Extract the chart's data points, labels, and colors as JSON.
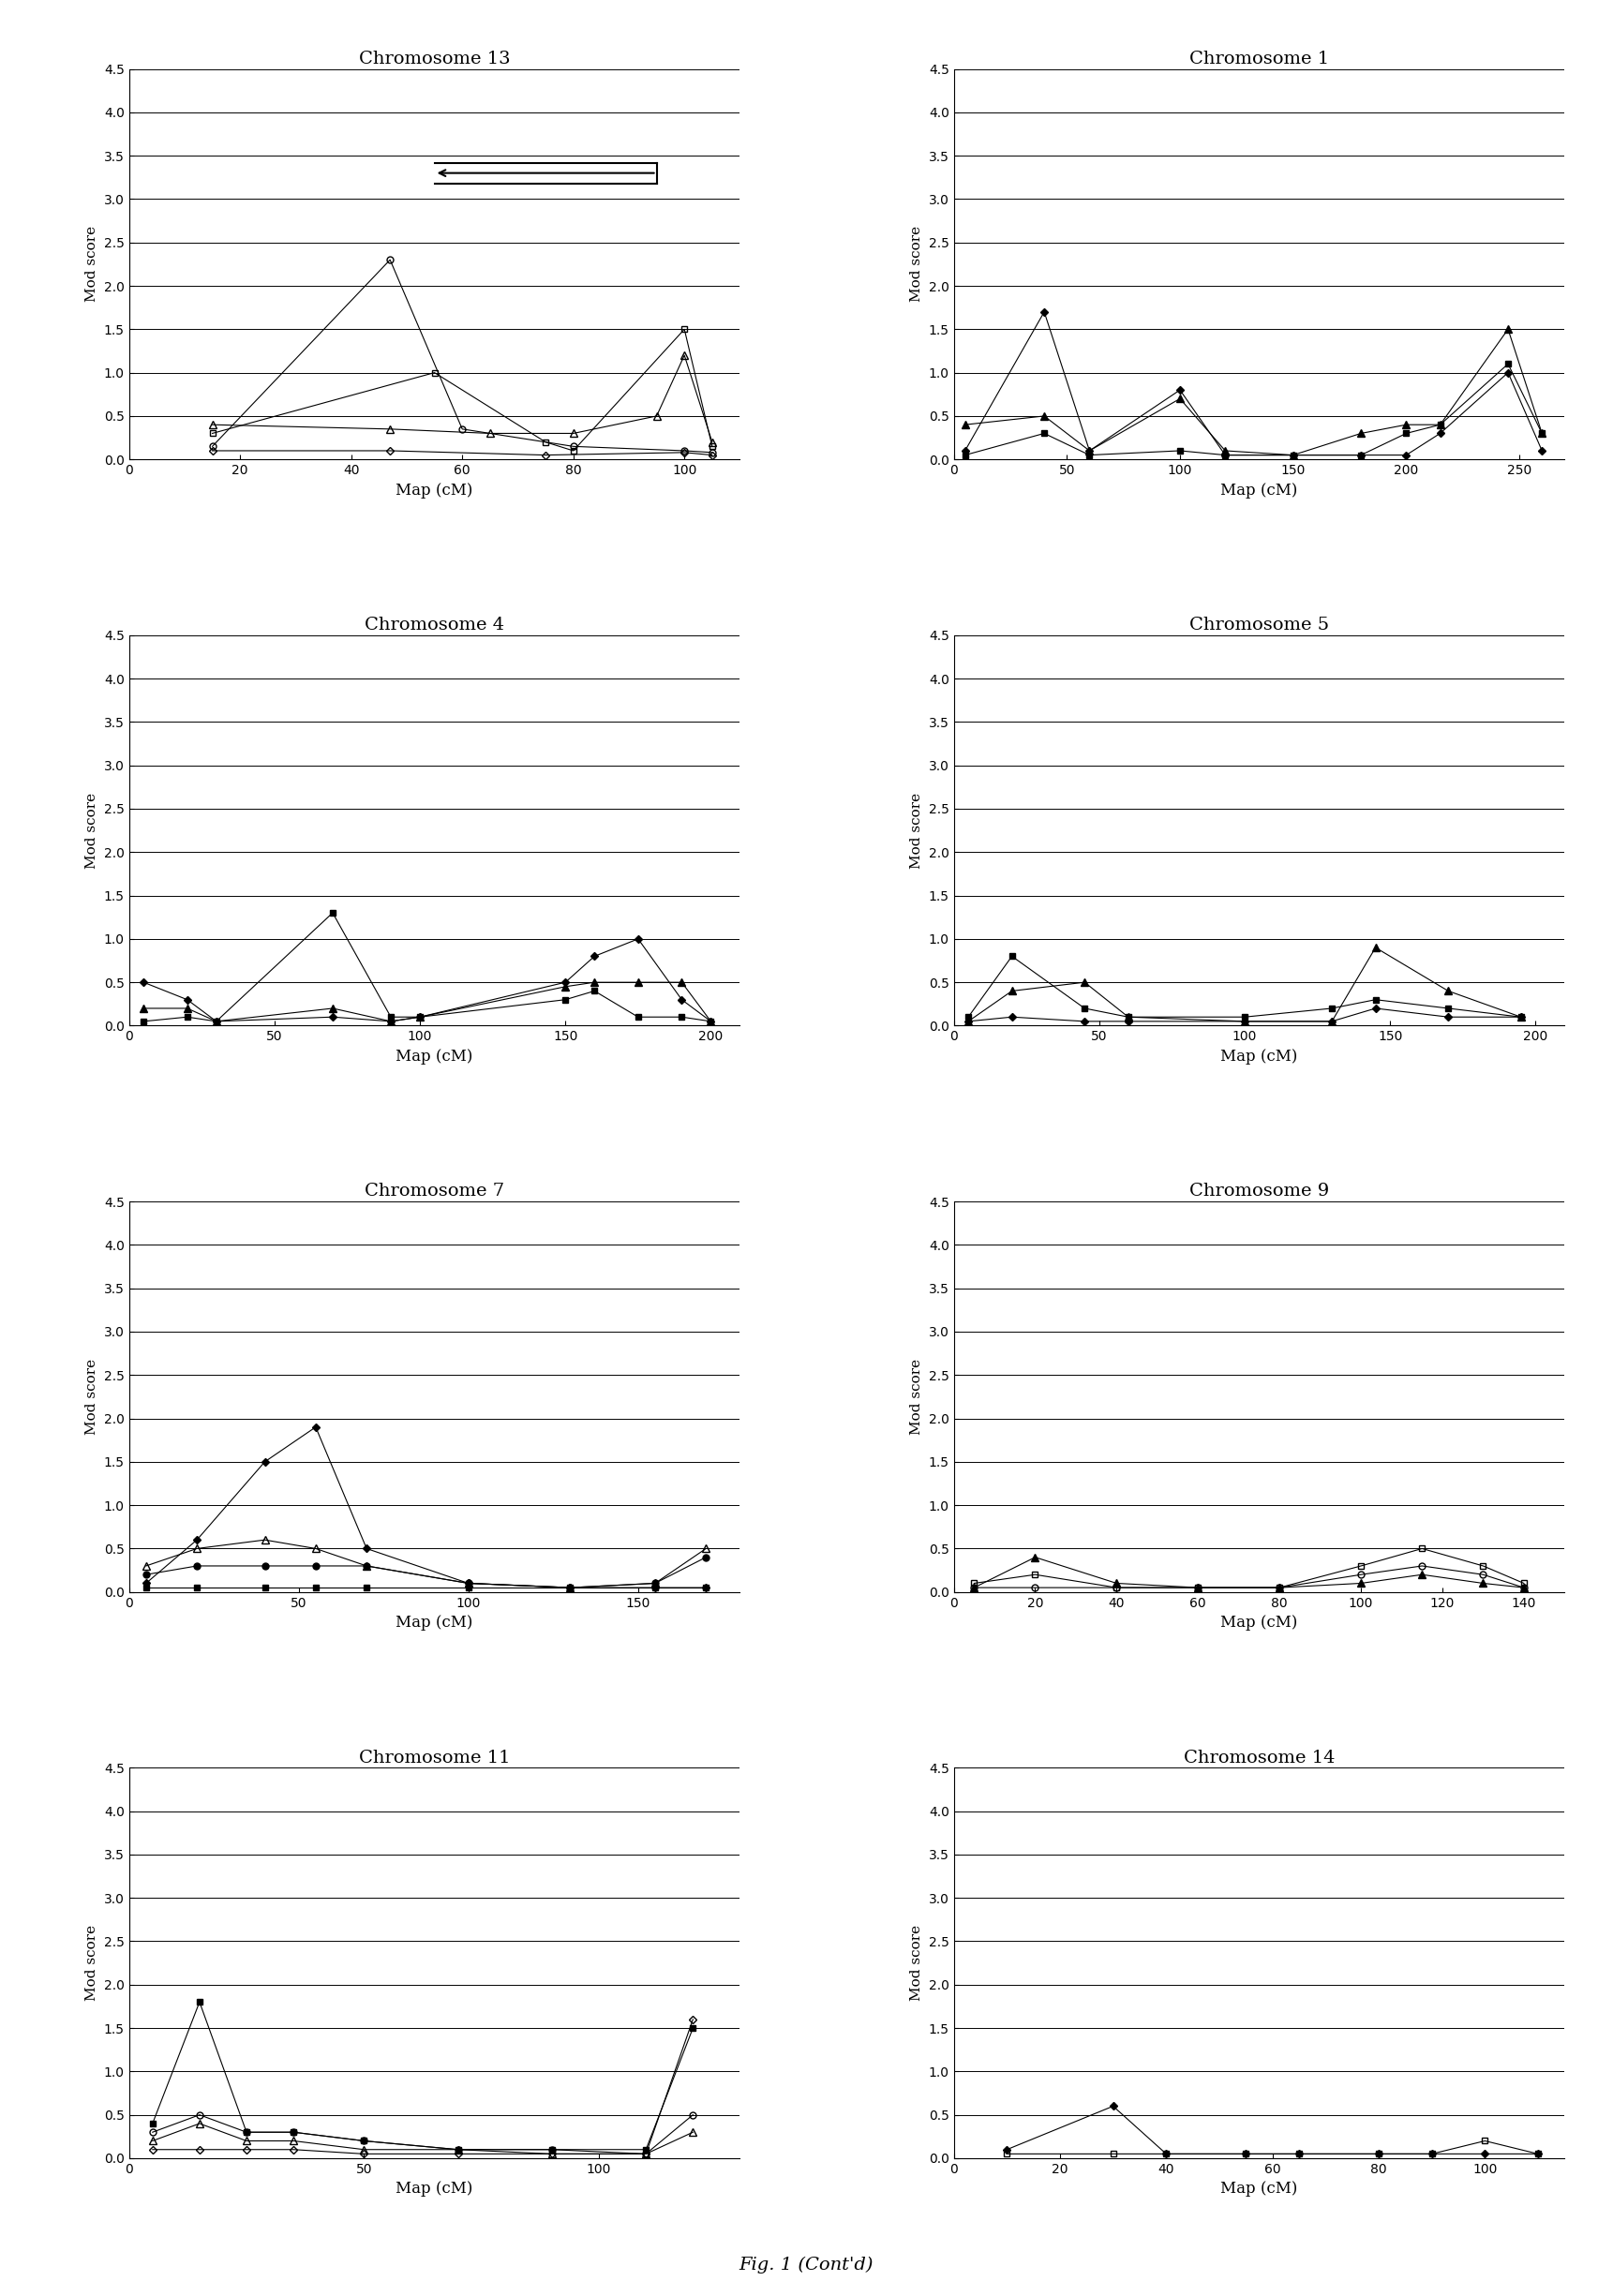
{
  "panels": [
    {
      "title": "Chromosome 13",
      "xlim": [
        0,
        110
      ],
      "xticks": [
        0,
        20,
        40,
        60,
        80,
        100
      ],
      "has_arrow": true,
      "arrow": {
        "x_start": 95,
        "x_end": 55,
        "y": 3.3
      },
      "series": [
        {
          "x": [
            15,
            47,
            60,
            80,
            100,
            105
          ],
          "y": [
            0.15,
            2.3,
            0.35,
            0.15,
            0.1,
            0.08
          ],
          "marker": "o",
          "filled": false,
          "ls": "-"
        },
        {
          "x": [
            15,
            55,
            75,
            80,
            100,
            105
          ],
          "y": [
            0.3,
            1.0,
            0.2,
            0.1,
            1.5,
            0.15
          ],
          "marker": "s",
          "filled": false,
          "ls": "-"
        },
        {
          "x": [
            15,
            47,
            65,
            80,
            95,
            100,
            105
          ],
          "y": [
            0.4,
            0.35,
            0.3,
            0.3,
            0.5,
            1.2,
            0.2
          ],
          "marker": "^",
          "filled": false,
          "ls": "-"
        },
        {
          "x": [
            15,
            47,
            75,
            100,
            105
          ],
          "y": [
            0.1,
            0.1,
            0.05,
            0.08,
            0.05
          ],
          "marker": "D",
          "filled": false,
          "ls": "-"
        }
      ]
    },
    {
      "title": "Chromosome 1",
      "xlim": [
        0,
        270
      ],
      "xticks": [
        0,
        50,
        100,
        150,
        200,
        250
      ],
      "has_arrow": false,
      "series": [
        {
          "x": [
            5,
            40,
            60,
            100,
            120,
            150,
            180,
            200,
            215,
            245,
            260
          ],
          "y": [
            0.4,
            0.5,
            0.1,
            0.7,
            0.1,
            0.05,
            0.3,
            0.4,
            0.4,
            1.5,
            0.3
          ],
          "marker": "^",
          "filled": true,
          "ls": "-"
        },
        {
          "x": [
            5,
            40,
            60,
            100,
            120,
            150,
            180,
            200,
            215,
            245,
            260
          ],
          "y": [
            0.1,
            1.7,
            0.1,
            0.8,
            0.05,
            0.05,
            0.05,
            0.05,
            0.3,
            1.0,
            0.1
          ],
          "marker": "D",
          "filled": true,
          "ls": "-"
        },
        {
          "x": [
            5,
            40,
            60,
            100,
            120,
            150,
            180,
            200,
            215,
            245,
            260
          ],
          "y": [
            0.05,
            0.3,
            0.05,
            0.1,
            0.05,
            0.05,
            0.05,
            0.3,
            0.4,
            1.1,
            0.3
          ],
          "marker": "s",
          "filled": true,
          "ls": "-"
        }
      ]
    },
    {
      "title": "Chromosome 4",
      "xlim": [
        0,
        210
      ],
      "xticks": [
        0,
        50,
        100,
        150,
        200
      ],
      "has_arrow": false,
      "series": [
        {
          "x": [
            5,
            20,
            30,
            70,
            90,
            100,
            150,
            160,
            175,
            190,
            200
          ],
          "y": [
            0.05,
            0.1,
            0.05,
            1.3,
            0.1,
            0.1,
            0.3,
            0.4,
            0.1,
            0.1,
            0.05
          ],
          "marker": "s",
          "filled": true,
          "ls": "-"
        },
        {
          "x": [
            5,
            20,
            30,
            70,
            90,
            100,
            150,
            160,
            175,
            190,
            200
          ],
          "y": [
            0.5,
            0.3,
            0.05,
            0.1,
            0.05,
            0.1,
            0.5,
            0.8,
            1.0,
            0.3,
            0.05
          ],
          "marker": "D",
          "filled": true,
          "ls": "-"
        },
        {
          "x": [
            5,
            20,
            30,
            70,
            90,
            100,
            150,
            160,
            175,
            190,
            200
          ],
          "y": [
            0.2,
            0.2,
            0.05,
            0.2,
            0.05,
            0.1,
            0.45,
            0.5,
            0.5,
            0.5,
            0.05
          ],
          "marker": "^",
          "filled": true,
          "ls": "-"
        }
      ]
    },
    {
      "title": "Chromosome 5",
      "xlim": [
        0,
        210
      ],
      "xticks": [
        0,
        50,
        100,
        150,
        200
      ],
      "has_arrow": false,
      "series": [
        {
          "x": [
            5,
            20,
            45,
            60,
            100,
            130,
            145,
            170,
            195
          ],
          "y": [
            0.1,
            0.8,
            0.2,
            0.1,
            0.1,
            0.2,
            0.3,
            0.2,
            0.1
          ],
          "marker": "s",
          "filled": true,
          "ls": "-"
        },
        {
          "x": [
            5,
            20,
            45,
            60,
            100,
            130,
            145,
            170,
            195
          ],
          "y": [
            0.05,
            0.4,
            0.5,
            0.1,
            0.05,
            0.05,
            0.9,
            0.4,
            0.1
          ],
          "marker": "^",
          "filled": true,
          "ls": "-"
        },
        {
          "x": [
            5,
            20,
            45,
            60,
            100,
            130,
            145,
            170,
            195
          ],
          "y": [
            0.05,
            0.1,
            0.05,
            0.05,
            0.05,
            0.05,
            0.2,
            0.1,
            0.1
          ],
          "marker": "D",
          "filled": true,
          "ls": "-"
        }
      ]
    },
    {
      "title": "Chromosome 7",
      "xlim": [
        0,
        180
      ],
      "xticks": [
        0,
        50,
        100,
        150
      ],
      "has_arrow": false,
      "series": [
        {
          "x": [
            5,
            20,
            40,
            55,
            70,
            100,
            130,
            155,
            170
          ],
          "y": [
            0.1,
            0.6,
            1.5,
            1.9,
            0.5,
            0.1,
            0.05,
            0.05,
            0.05
          ],
          "marker": "D",
          "filled": true,
          "ls": "-"
        },
        {
          "x": [
            5,
            20,
            40,
            55,
            70,
            100,
            130,
            155,
            170
          ],
          "y": [
            0.3,
            0.5,
            0.6,
            0.5,
            0.3,
            0.1,
            0.05,
            0.1,
            0.5
          ],
          "marker": "^",
          "filled": false,
          "ls": "-"
        },
        {
          "x": [
            5,
            20,
            40,
            55,
            70,
            100,
            130,
            155,
            170
          ],
          "y": [
            0.05,
            0.05,
            0.05,
            0.05,
            0.05,
            0.05,
            0.05,
            0.05,
            0.05
          ],
          "marker": "s",
          "filled": true,
          "ls": "-"
        },
        {
          "x": [
            5,
            20,
            40,
            55,
            70,
            100,
            130,
            155,
            170
          ],
          "y": [
            0.2,
            0.3,
            0.3,
            0.3,
            0.3,
            0.1,
            0.05,
            0.1,
            0.4
          ],
          "marker": "o",
          "filled": true,
          "ls": "-"
        }
      ]
    },
    {
      "title": "Chromosome 9",
      "xlim": [
        0,
        150
      ],
      "xticks": [
        0,
        20,
        40,
        60,
        80,
        100,
        120,
        140
      ],
      "has_arrow": false,
      "series": [
        {
          "x": [
            5,
            20,
            40,
            60,
            80,
            100,
            115,
            130,
            140
          ],
          "y": [
            0.1,
            0.2,
            0.05,
            0.05,
            0.05,
            0.3,
            0.5,
            0.3,
            0.1
          ],
          "marker": "s",
          "filled": false,
          "ls": "-"
        },
        {
          "x": [
            5,
            20,
            40,
            60,
            80,
            100,
            115,
            130,
            140
          ],
          "y": [
            0.05,
            0.4,
            0.1,
            0.05,
            0.05,
            0.1,
            0.2,
            0.1,
            0.05
          ],
          "marker": "^",
          "filled": true,
          "ls": "-"
        },
        {
          "x": [
            5,
            20,
            40,
            60,
            80,
            100,
            115,
            130,
            140
          ],
          "y": [
            0.05,
            0.05,
            0.05,
            0.05,
            0.05,
            0.2,
            0.3,
            0.2,
            0.05
          ],
          "marker": "o",
          "filled": false,
          "ls": "-"
        }
      ]
    },
    {
      "title": "Chromosome 11",
      "xlim": [
        0,
        130
      ],
      "xticks": [
        0,
        50,
        100
      ],
      "has_arrow": false,
      "series": [
        {
          "x": [
            5,
            15,
            25,
            35,
            50,
            70,
            90,
            110,
            120
          ],
          "y": [
            0.4,
            1.8,
            0.3,
            0.3,
            0.2,
            0.1,
            0.1,
            0.1,
            1.5
          ],
          "marker": "s",
          "filled": true,
          "ls": "-"
        },
        {
          "x": [
            5,
            15,
            25,
            35,
            50,
            70,
            90,
            110,
            120
          ],
          "y": [
            0.3,
            0.5,
            0.3,
            0.3,
            0.2,
            0.1,
            0.1,
            0.05,
            0.5
          ],
          "marker": "o",
          "filled": false,
          "ls": "-"
        },
        {
          "x": [
            5,
            15,
            25,
            35,
            50,
            70,
            90,
            110,
            120
          ],
          "y": [
            0.2,
            0.4,
            0.2,
            0.2,
            0.1,
            0.1,
            0.05,
            0.05,
            0.3
          ],
          "marker": "^",
          "filled": false,
          "ls": "-"
        },
        {
          "x": [
            5,
            15,
            25,
            35,
            50,
            70,
            90,
            110,
            120
          ],
          "y": [
            0.1,
            0.1,
            0.1,
            0.1,
            0.05,
            0.05,
            0.05,
            0.05,
            1.6
          ],
          "marker": "D",
          "filled": false,
          "ls": "-"
        }
      ]
    },
    {
      "title": "Chromosome 14",
      "xlim": [
        0,
        115
      ],
      "xticks": [
        0,
        20,
        40,
        60,
        80,
        100
      ],
      "has_arrow": false,
      "series": [
        {
          "x": [
            10,
            30,
            40,
            55,
            65,
            80,
            90,
            100,
            110
          ],
          "y": [
            0.05,
            0.05,
            0.05,
            0.05,
            0.05,
            0.05,
            0.05,
            0.2,
            0.05
          ],
          "marker": "s",
          "filled": false,
          "ls": "-"
        },
        {
          "x": [
            10,
            30,
            40,
            55,
            65,
            80,
            90,
            100,
            110
          ],
          "y": [
            0.1,
            0.6,
            0.05,
            0.05,
            0.05,
            0.05,
            0.05,
            0.05,
            0.05
          ],
          "marker": "D",
          "filled": true,
          "ls": "-"
        }
      ]
    }
  ],
  "ylim": [
    0,
    4.5
  ],
  "yticks": [
    0,
    0.5,
    1.0,
    1.5,
    2.0,
    2.5,
    3.0,
    3.5,
    4.0,
    4.5
  ],
  "ylabel": "Mod score",
  "xlabel": "Map (cM)",
  "fig_label": "Fig. 1 (Cont'd)",
  "background_color": "#ffffff",
  "line_color": "#000000"
}
